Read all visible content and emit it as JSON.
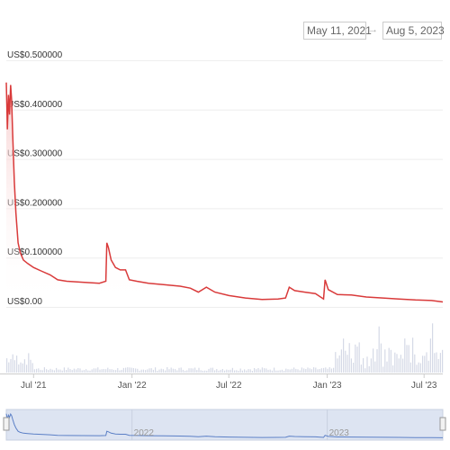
{
  "date_range": {
    "start": "May 11, 2021",
    "arrow": "→",
    "end": "Aug 5, 2023"
  },
  "colors": {
    "line": "#d93a3a",
    "area_top": "#f6c9c9",
    "volume": "#d5d9e6",
    "navigator_fill": "#dde4f2",
    "navigator_line": "#5b7fc6"
  },
  "chart_data": {
    "type": "area",
    "ylabel": "",
    "xlabel": "",
    "ylim": [
      0,
      0.5
    ],
    "y_ticks": [
      "US$0.500000",
      "US$0.400000",
      "US$0.300000",
      "US$0.200000",
      "US$0.100000",
      "US$0.00"
    ],
    "y_tick_values": [
      0.5,
      0.4,
      0.3,
      0.2,
      0.1,
      0
    ],
    "x_ticks": [
      "Jul '21",
      "Jan '22",
      "Jul '22",
      "Jan '23",
      "Jul '23"
    ],
    "x_tick_dates": [
      "2021-07-01",
      "2022-01-01",
      "2022-07-01",
      "2023-01-01",
      "2023-07-01"
    ],
    "navigator_labels": [
      "2022",
      "2023"
    ],
    "navigator_label_dates": [
      "2022-01-01",
      "2023-01-01"
    ],
    "x_start": "2021-05-11",
    "x_end": "2023-08-05",
    "series": [
      {
        "points": [
          [
            "2021-05-11",
            0.455
          ],
          [
            "2021-05-13",
            0.36
          ],
          [
            "2021-05-15",
            0.43
          ],
          [
            "2021-05-17",
            0.39
          ],
          [
            "2021-05-19",
            0.45
          ],
          [
            "2021-05-21",
            0.42
          ],
          [
            "2021-05-23",
            0.35
          ],
          [
            "2021-05-26",
            0.255
          ],
          [
            "2021-05-29",
            0.19
          ],
          [
            "2021-06-02",
            0.13
          ],
          [
            "2021-06-06",
            0.11
          ],
          [
            "2021-06-12",
            0.095
          ],
          [
            "2021-06-20",
            0.088
          ],
          [
            "2021-07-01",
            0.08
          ],
          [
            "2021-07-15",
            0.073
          ],
          [
            "2021-08-01",
            0.065
          ],
          [
            "2021-08-15",
            0.055
          ],
          [
            "2021-09-01",
            0.052
          ],
          [
            "2021-10-01",
            0.05
          ],
          [
            "2021-11-01",
            0.048
          ],
          [
            "2021-11-13",
            0.052
          ],
          [
            "2021-11-15",
            0.13
          ],
          [
            "2021-11-18",
            0.12
          ],
          [
            "2021-11-23",
            0.095
          ],
          [
            "2021-12-01",
            0.08
          ],
          [
            "2021-12-10",
            0.075
          ],
          [
            "2021-12-20",
            0.075
          ],
          [
            "2021-12-27",
            0.055
          ],
          [
            "2022-01-10",
            0.052
          ],
          [
            "2022-02-01",
            0.048
          ],
          [
            "2022-03-01",
            0.045
          ],
          [
            "2022-04-01",
            0.042
          ],
          [
            "2022-04-20",
            0.038
          ],
          [
            "2022-05-05",
            0.03
          ],
          [
            "2022-05-20",
            0.04
          ],
          [
            "2022-06-05",
            0.03
          ],
          [
            "2022-07-01",
            0.023
          ],
          [
            "2022-08-01",
            0.018
          ],
          [
            "2022-09-01",
            0.015
          ],
          [
            "2022-10-01",
            0.016
          ],
          [
            "2022-10-15",
            0.018
          ],
          [
            "2022-10-22",
            0.04
          ],
          [
            "2022-11-01",
            0.033
          ],
          [
            "2022-11-20",
            0.03
          ],
          [
            "2022-12-10",
            0.027
          ],
          [
            "2022-12-25",
            0.016
          ],
          [
            "2022-12-28",
            0.055
          ],
          [
            "2023-01-03",
            0.035
          ],
          [
            "2023-01-20",
            0.025
          ],
          [
            "2023-02-15",
            0.024
          ],
          [
            "2023-03-15",
            0.02
          ],
          [
            "2023-04-15",
            0.018
          ],
          [
            "2023-05-15",
            0.016
          ],
          [
            "2023-06-15",
            0.014
          ],
          [
            "2023-07-15",
            0.013
          ],
          [
            "2023-08-05",
            0.01
          ]
        ]
      }
    ]
  }
}
